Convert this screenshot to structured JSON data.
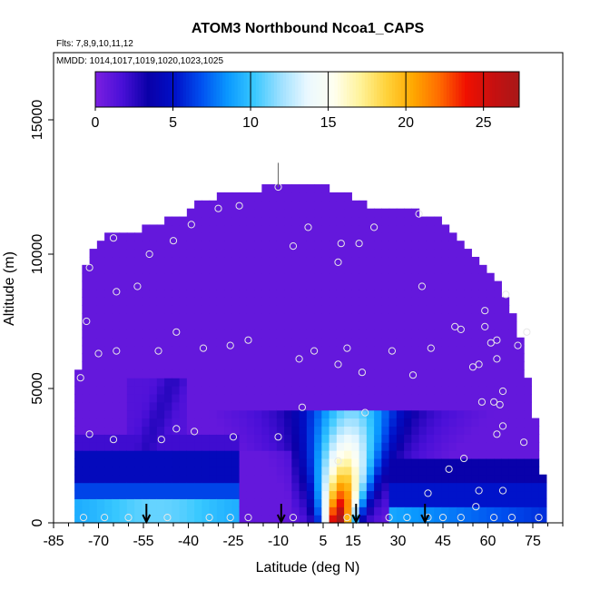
{
  "chart_data": {
    "type": "heatmap",
    "title": "ATOM3 Northbound Ncoa1_CAPS",
    "subtitle_lines": [
      "Flts: 7,8,9,10,11,12",
      "MMDD: 1014,1017,1019,1020,1023,1025"
    ],
    "xlabel": "Latitude (deg N)",
    "ylabel": "Altitude (m)",
    "xlim": [
      -85,
      85
    ],
    "ylim": [
      0,
      17500
    ],
    "x_ticks": [
      -85,
      -70,
      -55,
      -40,
      -25,
      -10,
      5,
      15,
      30,
      45,
      60,
      75
    ],
    "x_tick_labels": [
      "-85",
      "-70",
      "-55",
      "-40",
      "-25",
      "-10",
      "5",
      "15",
      "30",
      "45",
      "60",
      "75"
    ],
    "y_ticks": [
      0,
      5000,
      10000,
      15000
    ],
    "y_tick_labels": [
      "0",
      "5000",
      "10000",
      "15000"
    ],
    "colorbar": {
      "range": [
        0,
        27.3
      ],
      "ticks": [
        0,
        5,
        10,
        15,
        20,
        25
      ],
      "tick_labels": [
        "0",
        "5",
        "10",
        "15",
        "20",
        "25"
      ],
      "colors": [
        "#7b1fe0",
        "#4a10d8",
        "#0a00a8",
        "#0010c8",
        "#0050f0",
        "#0a98ff",
        "#38c8ff",
        "#9ee0ff",
        "#eaf8ff",
        "#fffff0",
        "#fff39a",
        "#ffd23a",
        "#ffa800",
        "#ff6a00",
        "#f01000",
        "#c81010",
        "#a81818"
      ]
    },
    "descent_arrows_lat": [
      -54,
      -9,
      16,
      39
    ],
    "sample_points": [
      [
        -75,
        200
      ],
      [
        -73,
        3300
      ],
      [
        -73,
        9500
      ],
      [
        -76,
        5400
      ],
      [
        -74,
        7500
      ],
      [
        -70,
        6300
      ],
      [
        -64,
        8600
      ],
      [
        -64,
        6400
      ],
      [
        -65,
        3100
      ],
      [
        -65,
        10600
      ],
      [
        -68,
        200
      ],
      [
        -60,
        200
      ],
      [
        -57,
        8800
      ],
      [
        -53,
        10000
      ],
      [
        -50,
        6400
      ],
      [
        -49,
        3100
      ],
      [
        -47,
        200
      ],
      [
        -45,
        10500
      ],
      [
        -44,
        3500
      ],
      [
        -44,
        7100
      ],
      [
        -39,
        11100
      ],
      [
        -38,
        3400
      ],
      [
        -35,
        6500
      ],
      [
        -33,
        200
      ],
      [
        -30,
        11700
      ],
      [
        -26,
        200
      ],
      [
        -26,
        6600
      ],
      [
        -25,
        3200
      ],
      [
        -23,
        11800
      ],
      [
        -20,
        200
      ],
      [
        -20,
        6800
      ],
      [
        -10,
        3200
      ],
      [
        -10,
        12500
      ],
      [
        -5,
        200
      ],
      [
        -5,
        10300
      ],
      [
        -3,
        6100
      ],
      [
        -2,
        4300
      ],
      [
        0,
        11000
      ],
      [
        2,
        6400
      ],
      [
        10,
        2300
      ],
      [
        10,
        5900
      ],
      [
        10,
        9700
      ],
      [
        11,
        10400
      ],
      [
        13,
        200
      ],
      [
        13,
        6500
      ],
      [
        17,
        10400
      ],
      [
        18,
        5600
      ],
      [
        19,
        4100
      ],
      [
        22,
        11000
      ],
      [
        27,
        200
      ],
      [
        28,
        6400
      ],
      [
        33,
        200
      ],
      [
        35,
        5500
      ],
      [
        37,
        11500
      ],
      [
        38,
        8800
      ],
      [
        40,
        200
      ],
      [
        40,
        1100
      ],
      [
        41,
        6500
      ],
      [
        45,
        200
      ],
      [
        47,
        2000
      ],
      [
        49,
        7300
      ],
      [
        51,
        200
      ],
      [
        52,
        2400
      ],
      [
        51,
        7200
      ],
      [
        55,
        5800
      ],
      [
        56,
        600
      ],
      [
        57,
        1200
      ],
      [
        57,
        5900
      ],
      [
        58,
        4500
      ],
      [
        59,
        7900
      ],
      [
        59,
        7300
      ],
      [
        61,
        6700
      ],
      [
        62,
        4500
      ],
      [
        62,
        200
      ],
      [
        63,
        3300
      ],
      [
        63,
        6100
      ],
      [
        63,
        6800
      ],
      [
        64,
        4400
      ],
      [
        65,
        3600
      ],
      [
        65,
        1200
      ],
      [
        65,
        4900
      ],
      [
        66,
        8500
      ],
      [
        68,
        200
      ],
      [
        70,
        6600
      ],
      [
        72,
        3000
      ],
      [
        73,
        7100
      ],
      [
        77,
        200
      ]
    ]
  }
}
